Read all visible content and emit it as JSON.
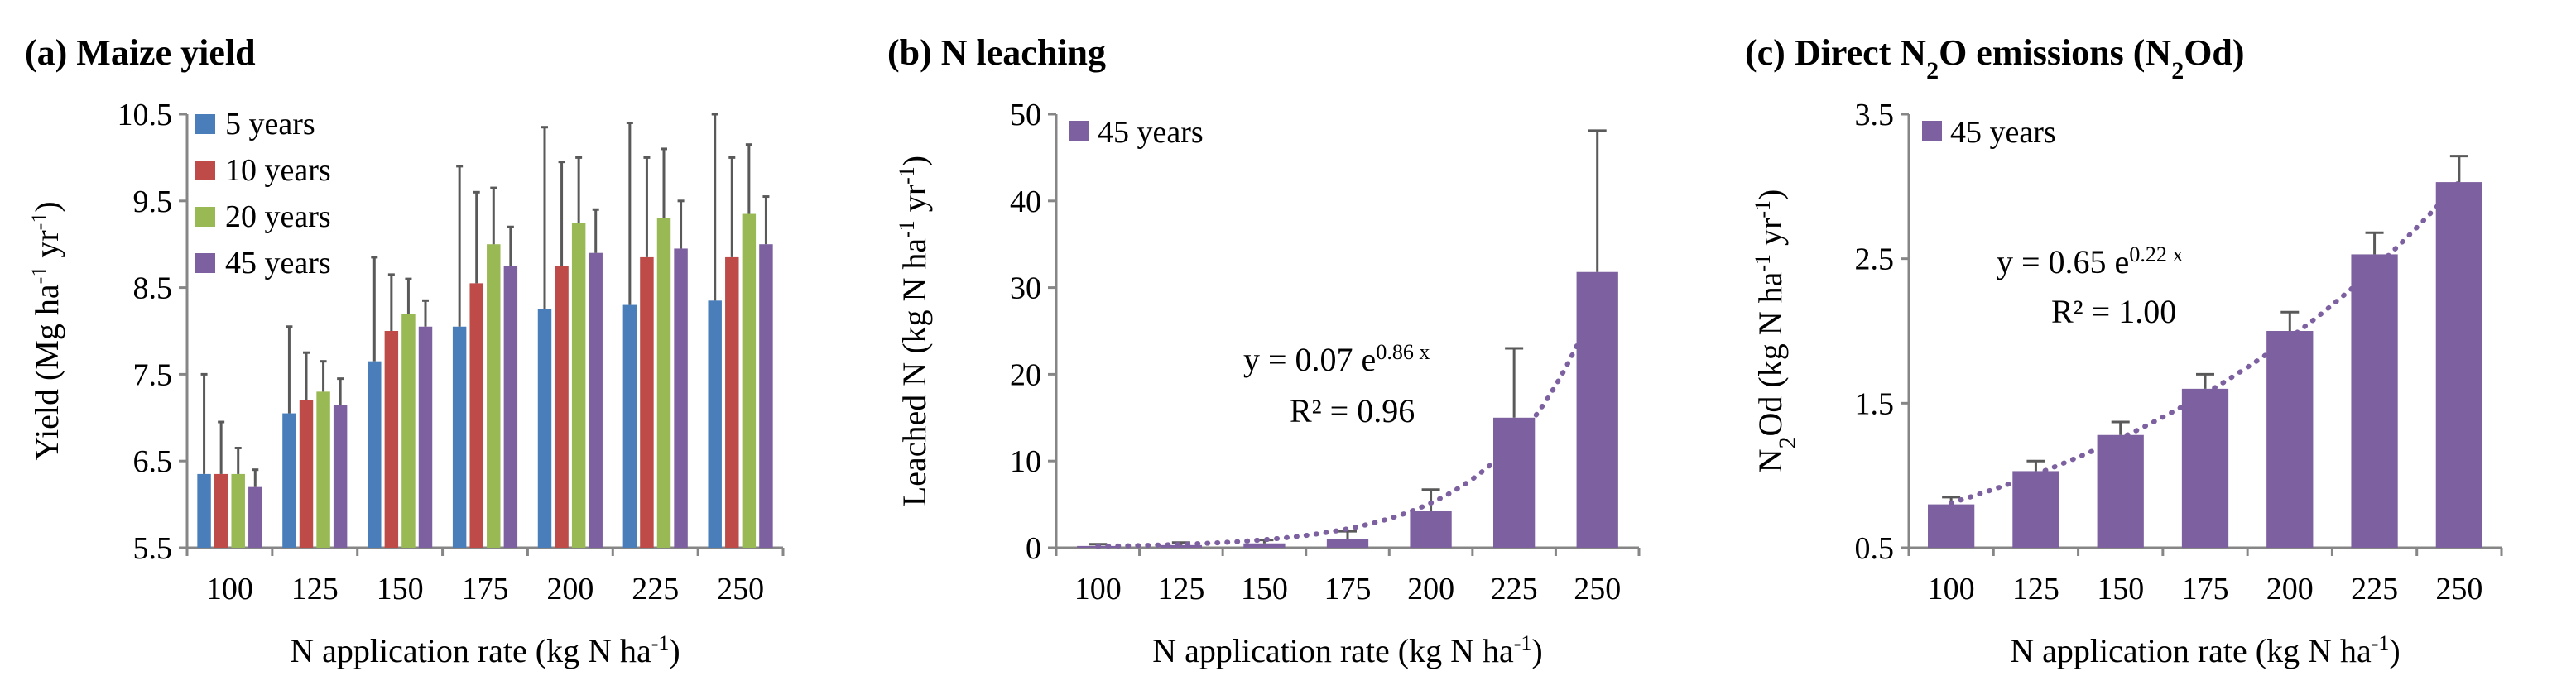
{
  "chart_data": [
    {
      "id": "a",
      "type": "bar",
      "title": "(a) Maize yield",
      "xlabel": {
        "main": "N application rate (kg N ha",
        "sup": "-1",
        "end": ")"
      },
      "ylabel": {
        "p1": "Yield (Mg ha",
        "s1": "-1",
        "p2": " yr",
        "s2": "-1",
        "p3": ")"
      },
      "categories": [
        "100",
        "125",
        "150",
        "175",
        "200",
        "225",
        "250"
      ],
      "ylim": [
        5.5,
        10.5
      ],
      "yticks": [
        "5.5",
        "6.5",
        "7.5",
        "8.5",
        "9.5",
        "10.5"
      ],
      "series": [
        {
          "name": "5 years",
          "color": "#4a7ebb",
          "values": [
            6.35,
            7.05,
            7.65,
            8.05,
            8.25,
            8.3,
            8.35
          ],
          "errors": [
            1.15,
            1.0,
            1.2,
            1.85,
            2.1,
            2.1,
            2.15
          ]
        },
        {
          "name": "10 years",
          "color": "#be4b48",
          "values": [
            6.35,
            7.2,
            8.0,
            8.55,
            8.75,
            8.85,
            8.85
          ],
          "errors": [
            0.6,
            0.55,
            0.65,
            1.05,
            1.2,
            1.15,
            1.15
          ]
        },
        {
          "name": "20 years",
          "color": "#98b954",
          "values": [
            6.35,
            7.3,
            8.2,
            9.0,
            9.25,
            9.3,
            9.35
          ],
          "errors": [
            0.3,
            0.35,
            0.4,
            0.65,
            0.75,
            0.8,
            0.8
          ]
        },
        {
          "name": "45 years",
          "color": "#7d60a0",
          "values": [
            6.2,
            7.15,
            8.05,
            8.75,
            8.9,
            8.95,
            9.0
          ],
          "errors": [
            0.2,
            0.3,
            0.3,
            0.45,
            0.5,
            0.55,
            0.55
          ]
        }
      ]
    },
    {
      "id": "b",
      "type": "bar",
      "title": "(b) N leaching",
      "xlabel": {
        "main": "N application rate (kg N ha",
        "sup": "-1",
        "end": ")"
      },
      "ylabel": {
        "p1": "Leached N (kg N  ha",
        "s1": "-1",
        "p2": " yr",
        "s2": "-1",
        "p3": ")"
      },
      "categories": [
        "100",
        "125",
        "150",
        "175",
        "200",
        "225",
        "250"
      ],
      "ylim": [
        0,
        50
      ],
      "yticks": [
        "0",
        "10",
        "20",
        "30",
        "40",
        "50"
      ],
      "series": [
        {
          "name": "45 years",
          "color": "#7d60a0",
          "values": [
            0.2,
            0.3,
            0.5,
            1.0,
            4.2,
            15.0,
            31.8
          ],
          "errors": [
            0.2,
            0.3,
            0.4,
            0.9,
            2.5,
            8.0,
            16.3
          ]
        }
      ],
      "trendline": {
        "type": "exponential",
        "a": 0.07,
        "b": 0.86,
        "eq_pre": "y = 0.07 e",
        "eq_exp": "0.86 x",
        "r2": "R² = 0.96"
      }
    },
    {
      "id": "c",
      "type": "bar",
      "title": {
        "p1": "(c) Direct N",
        "s1": "2",
        "p2": "O emissions (N",
        "s2": "2",
        "p3": "Od)"
      },
      "xlabel": {
        "main": "N application rate (kg N ha",
        "sup": "-1",
        "end": ")"
      },
      "ylabel": {
        "p1": "N",
        "s1": "2",
        "p2": "Od (kg N ha",
        "s2": "-1",
        "p3": " yr",
        "s3": "-1",
        "p4": ")"
      },
      "categories": [
        "100",
        "125",
        "150",
        "175",
        "200",
        "225",
        "250"
      ],
      "ylim": [
        0.5,
        3.5
      ],
      "yticks": [
        "0.5",
        "1.5",
        "2.5",
        "3.5"
      ],
      "series": [
        {
          "name": "45 years",
          "color": "#7d60a0",
          "values": [
            0.8,
            1.03,
            1.28,
            1.6,
            2.0,
            2.53,
            3.03
          ],
          "errors": [
            0.05,
            0.07,
            0.09,
            0.1,
            0.13,
            0.15,
            0.18
          ]
        }
      ],
      "trendline": {
        "type": "exponential",
        "a": 0.65,
        "b": 0.22,
        "eq_pre": "y = 0.65 e",
        "eq_exp": "0.22 x",
        "r2": "R² = 1.00"
      }
    }
  ]
}
